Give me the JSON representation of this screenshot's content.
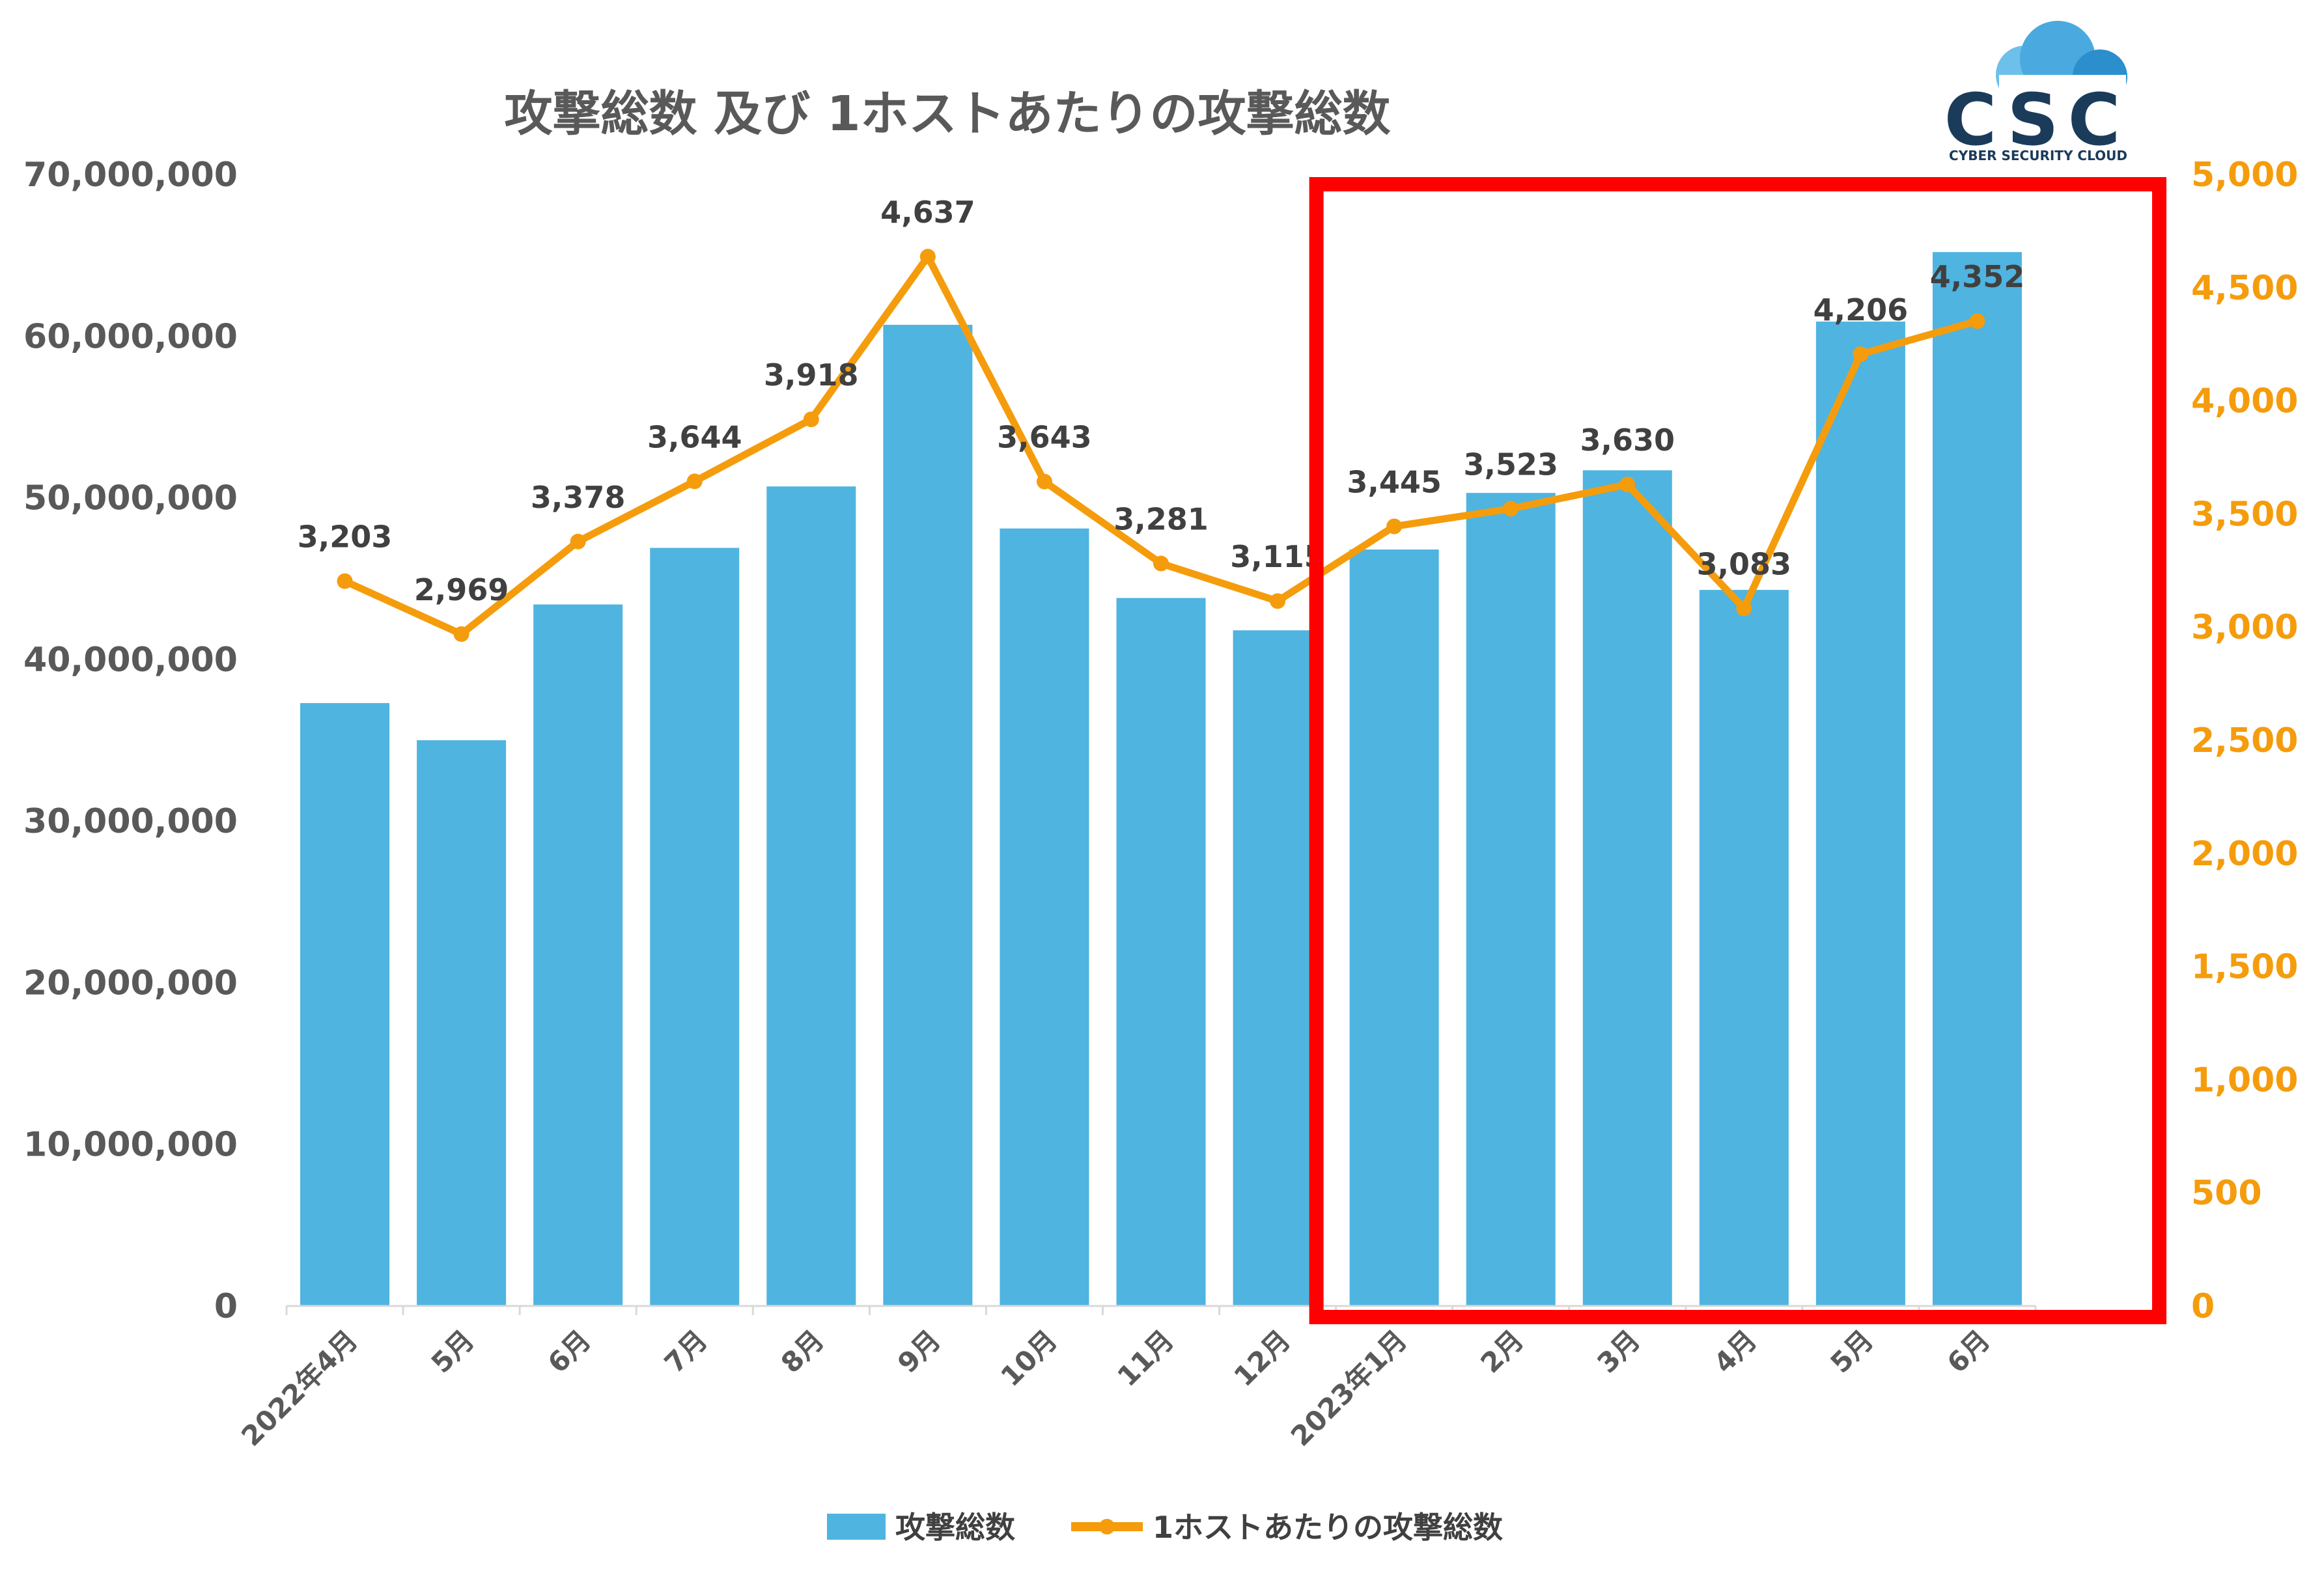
{
  "chart_data": {
    "type": "bar+line",
    "title": "攻撃総数 及び 1ホストあたりの攻撃総数",
    "categories": [
      "2022年4月",
      "5月",
      "6月",
      "7月",
      "8月",
      "9月",
      "10月",
      "11月",
      "12月",
      "2023年1月",
      "2月",
      "3月",
      "4月",
      "5月",
      "6月"
    ],
    "series": [
      {
        "name": "攻撃総数",
        "type": "bar",
        "axis": "left",
        "color": "#4fb4e0",
        "values": [
          37300000,
          35000000,
          43400000,
          46900000,
          50700000,
          60700000,
          48100000,
          43800000,
          41800000,
          46800000,
          50300000,
          51700000,
          44300000,
          60900000,
          65200000
        ]
      },
      {
        "name": "1ホストあたりの攻撃総数",
        "type": "line",
        "axis": "right",
        "color": "#f59c0c",
        "values": [
          3203,
          2969,
          3378,
          3644,
          3918,
          4637,
          3643,
          3281,
          3115,
          3445,
          3523,
          3630,
          3083,
          4206,
          4352
        ],
        "labels": [
          "3,203",
          "2,969",
          "3,378",
          "3,644",
          "3,918",
          "4,637",
          "3,643",
          "3,281",
          "3,115",
          "3,445",
          "3,523",
          "3,630",
          "3,083",
          "4,206",
          "4,352"
        ]
      }
    ],
    "y_left": {
      "range": [
        0,
        70000000
      ],
      "ticks": [
        "0",
        "10,000,000",
        "20,000,000",
        "30,000,000",
        "40,000,000",
        "50,000,000",
        "60,000,000",
        "70,000,000"
      ]
    },
    "y_right": {
      "range": [
        0,
        5000
      ],
      "ticks": [
        "0",
        "500",
        "1,000",
        "1,500",
        "2,000",
        "2,500",
        "3,000",
        "3,500",
        "4,000",
        "4,500",
        "5,000"
      ]
    },
    "grid": false,
    "legend_position": "bottom",
    "highlight": {
      "from_category": "2023年1月",
      "to_category": "6月",
      "color": "#ff0000"
    }
  },
  "logo": {
    "text": "CSC",
    "tagline": "CYBER SECURITY CLOUD",
    "icon": "cloud-icon"
  },
  "colors": {
    "bar": "#4fb4e0",
    "line": "#f59c0c",
    "highlight_box": "#ff0000",
    "text": "#595959"
  }
}
